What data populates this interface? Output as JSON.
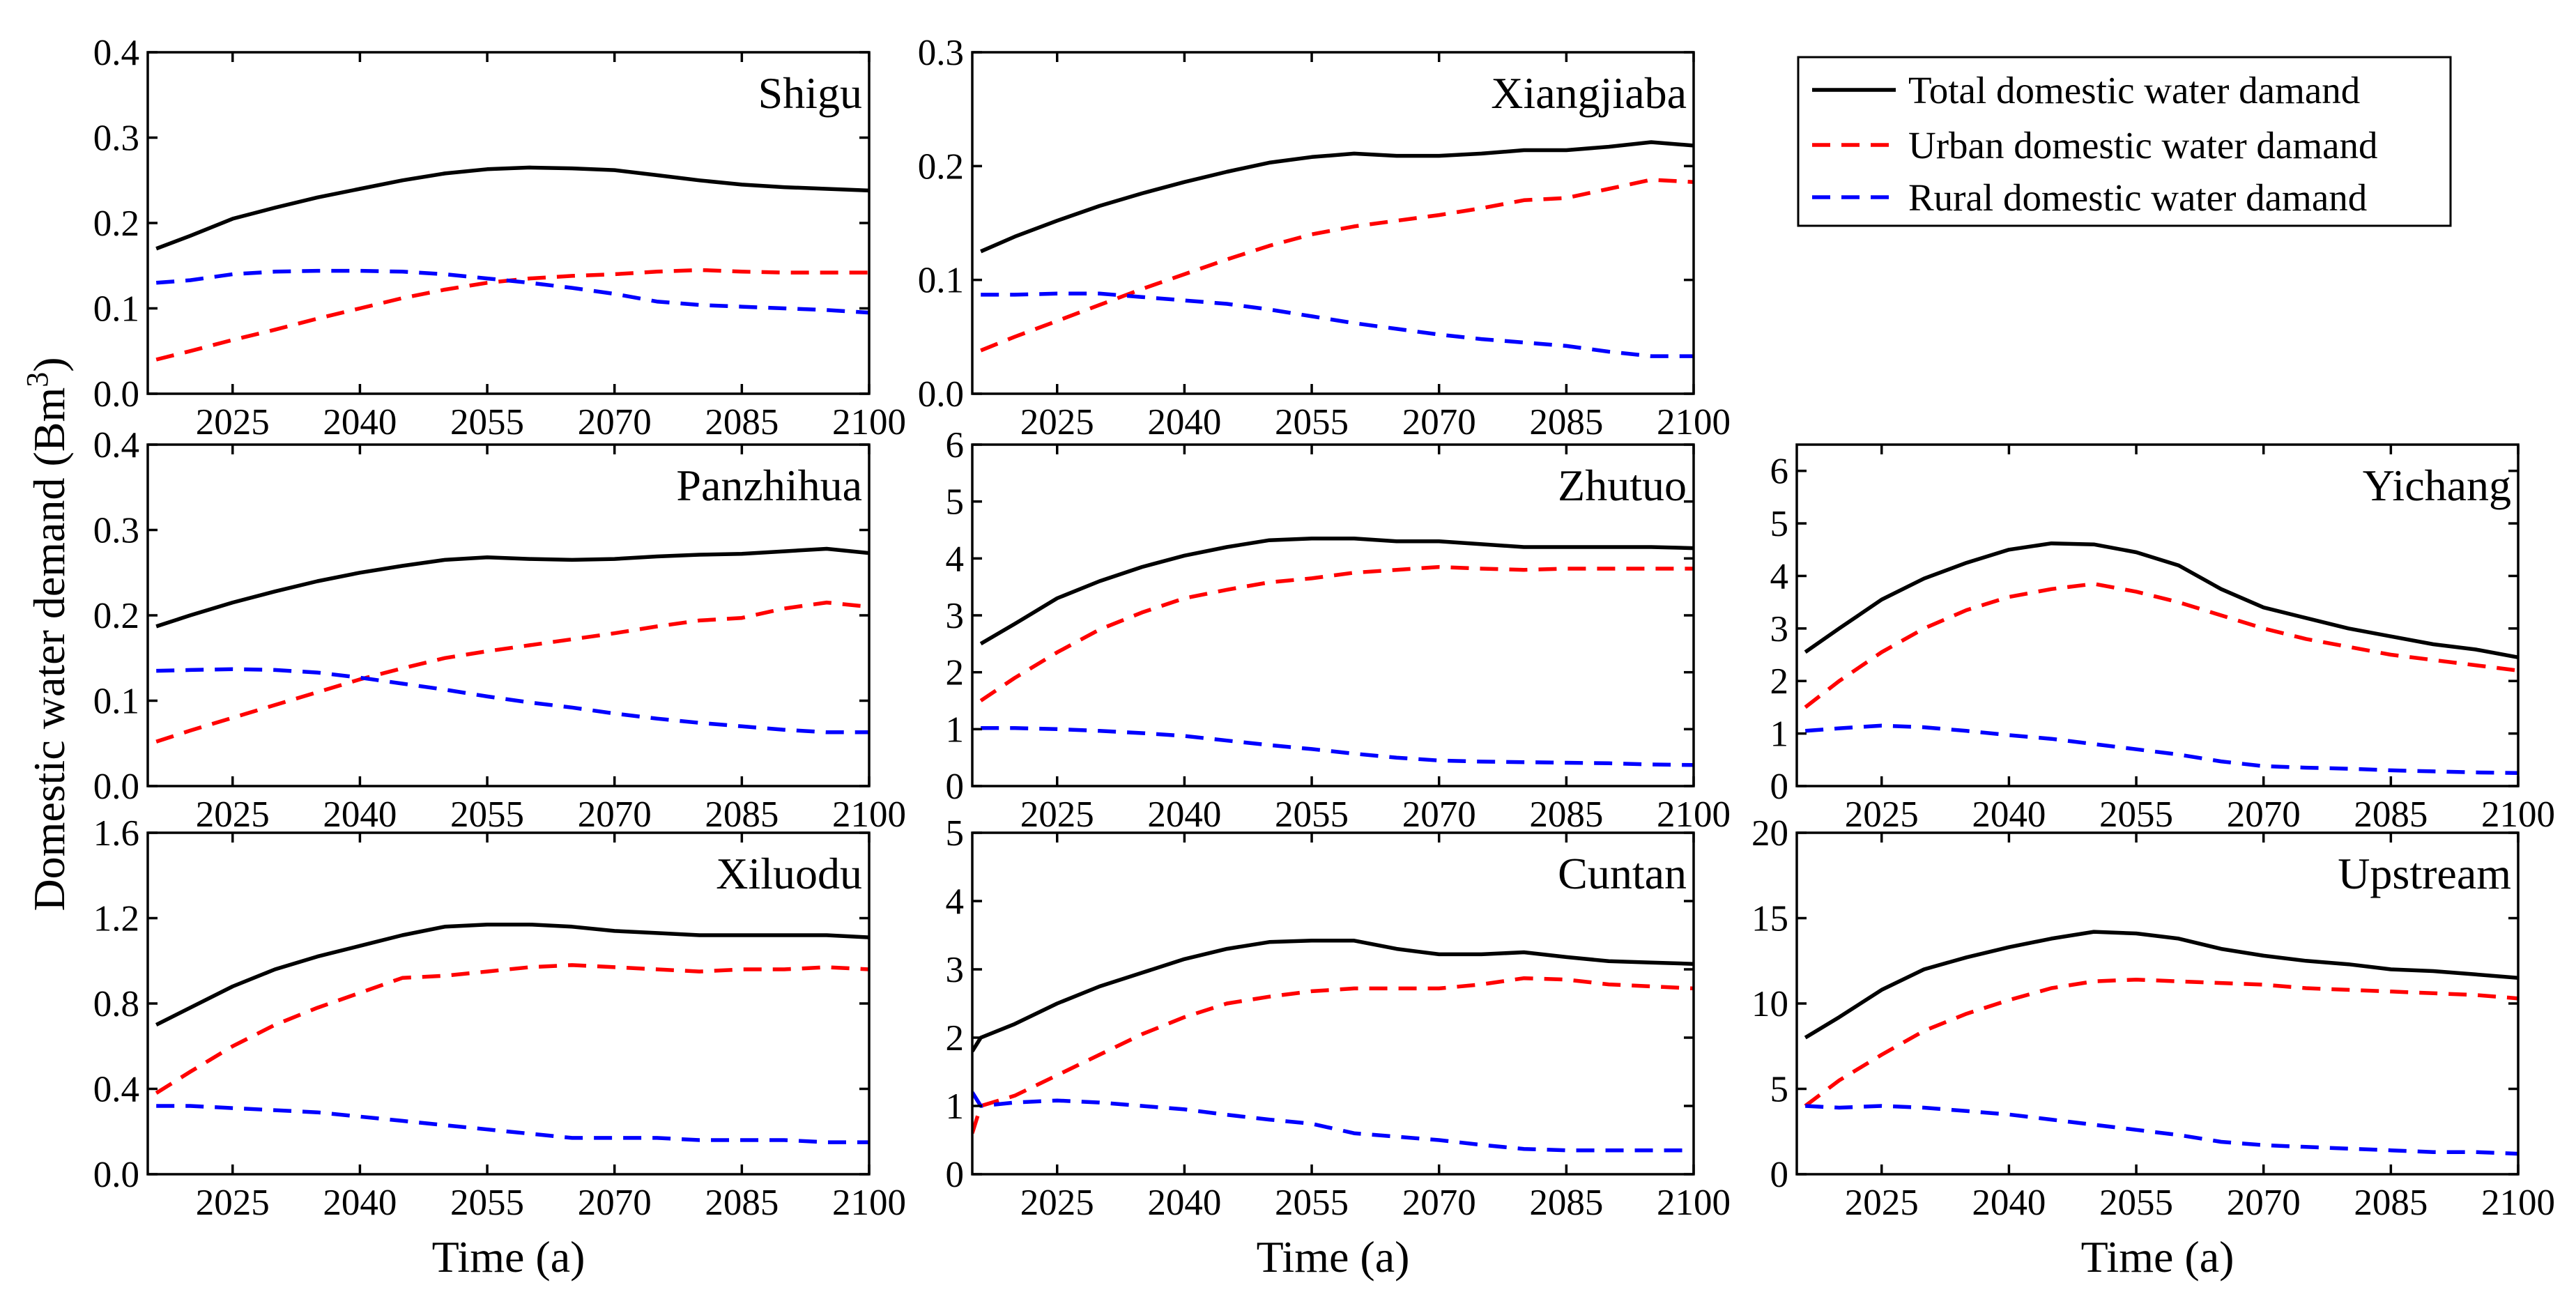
{
  "figure": {
    "y_axis_title": "Domestic water demand (Bm",
    "y_axis_title_sup": "3",
    "y_axis_title_close": ")",
    "x_axis_title": "Time (a)"
  },
  "legend": {
    "entries": [
      {
        "label": "Total domestic water damand",
        "color": "#000000",
        "dash": "solid"
      },
      {
        "label": "Urban domestic water damand",
        "color": "#ff0000",
        "dash": "dashed"
      },
      {
        "label": "Rural domestic water damand",
        "color": "#0000ff",
        "dash": "dashed"
      }
    ]
  },
  "chart_data": [
    {
      "type": "line",
      "title": "Shigu",
      "xlabel": "",
      "ylabel": "",
      "xlim": [
        2015,
        2100
      ],
      "ylim": [
        0,
        0.4
      ],
      "xticks": [
        2025,
        2040,
        2055,
        2070,
        2085,
        2100
      ],
      "xtick_labels": [
        "2025",
        "2040",
        "2055",
        "2070",
        "2085",
        "2100"
      ],
      "yticks": [
        0,
        0.1,
        0.2,
        0.3,
        0.4
      ],
      "ytick_labels": [
        "0.0",
        "0.1",
        "0.2",
        "0.3",
        "0.4"
      ],
      "x": [
        2016,
        2020,
        2025,
        2030,
        2035,
        2040,
        2045,
        2050,
        2055,
        2060,
        2065,
        2070,
        2075,
        2080,
        2085,
        2090,
        2095,
        2100
      ],
      "series": [
        {
          "name": "Total domestic water damand",
          "values": [
            0.17,
            0.185,
            0.205,
            0.218,
            0.23,
            0.24,
            0.25,
            0.258,
            0.263,
            0.265,
            0.264,
            0.262,
            0.256,
            0.25,
            0.245,
            0.242,
            0.24,
            0.238
          ]
        },
        {
          "name": "Urban domestic water damand",
          "values": [
            0.04,
            0.05,
            0.063,
            0.075,
            0.088,
            0.1,
            0.112,
            0.122,
            0.13,
            0.135,
            0.138,
            0.14,
            0.143,
            0.145,
            0.143,
            0.142,
            0.142,
            0.142
          ]
        },
        {
          "name": "Rural domestic water damand",
          "values": [
            0.13,
            0.133,
            0.14,
            0.143,
            0.144,
            0.144,
            0.143,
            0.14,
            0.135,
            0.13,
            0.124,
            0.117,
            0.108,
            0.104,
            0.102,
            0.1,
            0.098,
            0.095
          ]
        }
      ]
    },
    {
      "type": "line",
      "title": "Xiangjiaba",
      "xlabel": "",
      "ylabel": "",
      "xlim": [
        2015,
        2100
      ],
      "ylim": [
        0,
        0.3
      ],
      "xticks": [
        2025,
        2040,
        2055,
        2070,
        2085,
        2100
      ],
      "xtick_labels": [
        "2025",
        "2040",
        "2055",
        "2070",
        "2085",
        "2100"
      ],
      "yticks": [
        0,
        0.1,
        0.2,
        0.3
      ],
      "ytick_labels": [
        "0.0",
        "0.1",
        "0.2",
        "0.3"
      ],
      "x": [
        2016,
        2020,
        2025,
        2030,
        2035,
        2040,
        2045,
        2050,
        2055,
        2060,
        2065,
        2070,
        2075,
        2080,
        2085,
        2090,
        2095,
        2100
      ],
      "series": [
        {
          "name": "Total domestic water damand",
          "values": [
            0.125,
            0.138,
            0.152,
            0.165,
            0.176,
            0.186,
            0.195,
            0.203,
            0.208,
            0.211,
            0.209,
            0.209,
            0.211,
            0.214,
            0.214,
            0.217,
            0.221,
            0.218
          ]
        },
        {
          "name": "Urban domestic water damand",
          "values": [
            0.038,
            0.05,
            0.064,
            0.078,
            0.092,
            0.105,
            0.118,
            0.13,
            0.14,
            0.147,
            0.152,
            0.157,
            0.163,
            0.17,
            0.172,
            0.18,
            0.188,
            0.186
          ]
        },
        {
          "name": "Rural domestic water damand",
          "values": [
            0.087,
            0.087,
            0.088,
            0.088,
            0.085,
            0.082,
            0.079,
            0.074,
            0.068,
            0.062,
            0.057,
            0.052,
            0.048,
            0.045,
            0.042,
            0.037,
            0.033,
            0.033
          ]
        }
      ]
    },
    {
      "type": "line",
      "title": "Panzhihua",
      "xlabel": "",
      "ylabel": "",
      "xlim": [
        2015,
        2100
      ],
      "ylim": [
        0,
        0.4
      ],
      "xticks": [
        2025,
        2040,
        2055,
        2070,
        2085,
        2100
      ],
      "xtick_labels": [
        "2025",
        "2040",
        "2055",
        "2070",
        "2085",
        "2100"
      ],
      "yticks": [
        0,
        0.1,
        0.2,
        0.3,
        0.4
      ],
      "ytick_labels": [
        "0.0",
        "0.1",
        "0.2",
        "0.3",
        "0.4"
      ],
      "x": [
        2016,
        2020,
        2025,
        2030,
        2035,
        2040,
        2045,
        2050,
        2055,
        2060,
        2065,
        2070,
        2075,
        2080,
        2085,
        2090,
        2095,
        2100
      ],
      "series": [
        {
          "name": "Total domestic water damand",
          "values": [
            0.187,
            0.2,
            0.215,
            0.228,
            0.24,
            0.25,
            0.258,
            0.265,
            0.268,
            0.266,
            0.265,
            0.266,
            0.269,
            0.271,
            0.272,
            0.275,
            0.278,
            0.273
          ]
        },
        {
          "name": "Urban domestic water damand",
          "values": [
            0.052,
            0.065,
            0.08,
            0.095,
            0.11,
            0.125,
            0.138,
            0.15,
            0.158,
            0.165,
            0.172,
            0.179,
            0.187,
            0.194,
            0.197,
            0.208,
            0.215,
            0.21
          ]
        },
        {
          "name": "Rural domestic water damand",
          "values": [
            0.135,
            0.136,
            0.137,
            0.136,
            0.133,
            0.127,
            0.12,
            0.113,
            0.105,
            0.098,
            0.092,
            0.085,
            0.079,
            0.074,
            0.07,
            0.066,
            0.063,
            0.063
          ]
        }
      ]
    },
    {
      "type": "line",
      "title": "Zhutuo",
      "xlabel": "",
      "ylabel": "",
      "xlim": [
        2015,
        2100
      ],
      "ylim": [
        0,
        6
      ],
      "xticks": [
        2025,
        2040,
        2055,
        2070,
        2085,
        2100
      ],
      "xtick_labels": [
        "2025",
        "2040",
        "2055",
        "2070",
        "2085",
        "2100"
      ],
      "yticks": [
        0,
        1,
        2,
        3,
        4,
        5,
        6
      ],
      "ytick_labels": [
        "0",
        "1",
        "2",
        "3",
        "4",
        "5",
        "6"
      ],
      "x": [
        2016,
        2020,
        2025,
        2030,
        2035,
        2040,
        2045,
        2050,
        2055,
        2060,
        2065,
        2070,
        2075,
        2080,
        2085,
        2090,
        2095,
        2100
      ],
      "series": [
        {
          "name": "Total domestic water damand",
          "values": [
            2.5,
            2.85,
            3.3,
            3.6,
            3.85,
            4.05,
            4.2,
            4.32,
            4.35,
            4.35,
            4.3,
            4.3,
            4.25,
            4.2,
            4.2,
            4.2,
            4.2,
            4.18
          ]
        },
        {
          "name": "Urban domestic water damand",
          "values": [
            1.5,
            1.9,
            2.35,
            2.75,
            3.05,
            3.3,
            3.45,
            3.58,
            3.65,
            3.75,
            3.8,
            3.85,
            3.82,
            3.8,
            3.82,
            3.82,
            3.82,
            3.82
          ]
        },
        {
          "name": "Rural domestic water damand",
          "values": [
            1.02,
            1.02,
            1.0,
            0.97,
            0.93,
            0.88,
            0.8,
            0.72,
            0.65,
            0.57,
            0.5,
            0.45,
            0.43,
            0.42,
            0.41,
            0.4,
            0.38,
            0.37
          ]
        }
      ]
    },
    {
      "type": "line",
      "title": "Yichang",
      "xlabel": "",
      "ylabel": "",
      "xlim": [
        2015,
        2100
      ],
      "ylim": [
        0,
        6.5
      ],
      "xticks": [
        2025,
        2040,
        2055,
        2070,
        2085,
        2100
      ],
      "xtick_labels": [
        "2025",
        "2040",
        "2055",
        "2070",
        "2085",
        "2100"
      ],
      "yticks": [
        0,
        1,
        2,
        3,
        4,
        5,
        6
      ],
      "ytick_labels": [
        "0",
        "1",
        "2",
        "3",
        "4",
        "5",
        "6"
      ],
      "x": [
        2016,
        2020,
        2025,
        2030,
        2035,
        2040,
        2045,
        2050,
        2055,
        2060,
        2065,
        2070,
        2075,
        2080,
        2085,
        2090,
        2095,
        2100
      ],
      "series": [
        {
          "name": "Total domestic water damand",
          "values": [
            2.55,
            3.0,
            3.55,
            3.95,
            4.25,
            4.5,
            4.62,
            4.6,
            4.45,
            4.2,
            3.75,
            3.4,
            3.2,
            3.0,
            2.85,
            2.7,
            2.6,
            2.45
          ]
        },
        {
          "name": "Urban domestic water damand",
          "values": [
            1.5,
            2.0,
            2.55,
            3.0,
            3.35,
            3.6,
            3.75,
            3.85,
            3.7,
            3.5,
            3.25,
            3.0,
            2.8,
            2.65,
            2.5,
            2.4,
            2.3,
            2.2
          ]
        },
        {
          "name": "Rural domestic water damand",
          "values": [
            1.05,
            1.1,
            1.15,
            1.12,
            1.05,
            0.97,
            0.9,
            0.8,
            0.7,
            0.6,
            0.47,
            0.38,
            0.35,
            0.33,
            0.3,
            0.28,
            0.26,
            0.25
          ]
        }
      ]
    },
    {
      "type": "line",
      "title": "Xiluodu",
      "xlabel": "Time (a)",
      "ylabel": "",
      "xlim": [
        2015,
        2100
      ],
      "ylim": [
        0,
        1.6
      ],
      "xticks": [
        2025,
        2040,
        2055,
        2070,
        2085,
        2100
      ],
      "xtick_labels": [
        "2025",
        "2040",
        "2055",
        "2070",
        "2085",
        "2100"
      ],
      "yticks": [
        0,
        0.4,
        0.8,
        1.2,
        1.6
      ],
      "ytick_labels": [
        "0.0",
        "0.4",
        "0.8",
        "1.2",
        "1.6"
      ],
      "x": [
        2016,
        2020,
        2025,
        2030,
        2035,
        2040,
        2045,
        2050,
        2055,
        2060,
        2065,
        2070,
        2075,
        2080,
        2085,
        2090,
        2095,
        2100
      ],
      "series": [
        {
          "name": "Total domestic water damand",
          "values": [
            0.7,
            0.78,
            0.88,
            0.96,
            1.02,
            1.07,
            1.12,
            1.16,
            1.17,
            1.17,
            1.16,
            1.14,
            1.13,
            1.12,
            1.12,
            1.12,
            1.12,
            1.11
          ]
        },
        {
          "name": "Urban domestic water damand",
          "values": [
            0.38,
            0.48,
            0.6,
            0.7,
            0.78,
            0.85,
            0.92,
            0.93,
            0.95,
            0.97,
            0.98,
            0.97,
            0.96,
            0.95,
            0.96,
            0.96,
            0.97,
            0.96
          ]
        },
        {
          "name": "Rural domestic water damand",
          "values": [
            0.32,
            0.32,
            0.31,
            0.3,
            0.29,
            0.27,
            0.25,
            0.23,
            0.21,
            0.19,
            0.17,
            0.17,
            0.17,
            0.16,
            0.16,
            0.16,
            0.15,
            0.15
          ]
        }
      ]
    },
    {
      "type": "line",
      "title": "Cuntan",
      "xlabel": "Time (a)",
      "ylabel": "",
      "xlim": [
        2015,
        2100
      ],
      "ylim": [
        0,
        5
      ],
      "xticks": [
        2025,
        2040,
        2055,
        2070,
        2085,
        2100
      ],
      "xtick_labels": [
        "2025",
        "2040",
        "2055",
        "2070",
        "2085",
        "2100"
      ],
      "yticks": [
        0,
        1,
        2,
        3,
        4,
        5
      ],
      "ytick_labels": [
        "0",
        "1",
        "2",
        "3",
        "4",
        "5"
      ],
      "x": [
        2015,
        2016,
        2020,
        2025,
        2030,
        2035,
        2040,
        2045,
        2050,
        2055,
        2060,
        2065,
        2070,
        2075,
        2080,
        2085,
        2090,
        2095,
        2100
      ],
      "series": [
        {
          "name": "Total domestic water damand",
          "values": [
            1.8,
            2.0,
            2.2,
            2.5,
            2.75,
            2.95,
            3.15,
            3.3,
            3.4,
            3.42,
            3.42,
            3.3,
            3.22,
            3.22,
            3.25,
            3.18,
            3.12,
            3.1,
            3.08
          ]
        },
        {
          "name": "Urban domestic water damand",
          "values": [
            0.6,
            1.0,
            1.15,
            1.45,
            1.75,
            2.05,
            2.3,
            2.5,
            2.6,
            2.68,
            2.72,
            2.72,
            2.72,
            2.78,
            2.87,
            2.85,
            2.78,
            2.75,
            2.72
          ]
        },
        {
          "name": "Rural domestic water damand",
          "values": [
            1.2,
            1.0,
            1.05,
            1.08,
            1.05,
            1.0,
            0.95,
            0.87,
            0.8,
            0.74,
            0.6,
            0.55,
            0.5,
            0.43,
            0.37,
            0.35,
            0.35,
            0.35,
            0.35
          ]
        }
      ]
    },
    {
      "type": "line",
      "title": "Upstream",
      "xlabel": "Time (a)",
      "ylabel": "",
      "xlim": [
        2015,
        2100
      ],
      "ylim": [
        0,
        20
      ],
      "xticks": [
        2025,
        2040,
        2055,
        2070,
        2085,
        2100
      ],
      "xtick_labels": [
        "2025",
        "2040",
        "2055",
        "2070",
        "2085",
        "2100"
      ],
      "yticks": [
        0,
        5,
        10,
        15,
        20
      ],
      "ytick_labels": [
        "0",
        "5",
        "10",
        "15",
        "20"
      ],
      "x": [
        2016,
        2020,
        2025,
        2030,
        2035,
        2040,
        2045,
        2050,
        2055,
        2060,
        2065,
        2070,
        2075,
        2080,
        2085,
        2090,
        2095,
        2100
      ],
      "series": [
        {
          "name": "Total domestic water damand",
          "values": [
            8.0,
            9.2,
            10.8,
            12.0,
            12.7,
            13.3,
            13.8,
            14.2,
            14.1,
            13.8,
            13.2,
            12.8,
            12.5,
            12.3,
            12.0,
            11.9,
            11.7,
            11.5
          ]
        },
        {
          "name": "Urban domestic water damand",
          "values": [
            4.0,
            5.5,
            7.0,
            8.4,
            9.4,
            10.2,
            10.9,
            11.3,
            11.4,
            11.3,
            11.2,
            11.1,
            10.9,
            10.8,
            10.7,
            10.6,
            10.5,
            10.3
          ]
        },
        {
          "name": "Rural domestic water damand",
          "values": [
            4.0,
            3.9,
            4.0,
            3.9,
            3.7,
            3.5,
            3.2,
            2.9,
            2.6,
            2.3,
            1.9,
            1.7,
            1.6,
            1.5,
            1.4,
            1.3,
            1.3,
            1.2
          ]
        }
      ]
    }
  ]
}
